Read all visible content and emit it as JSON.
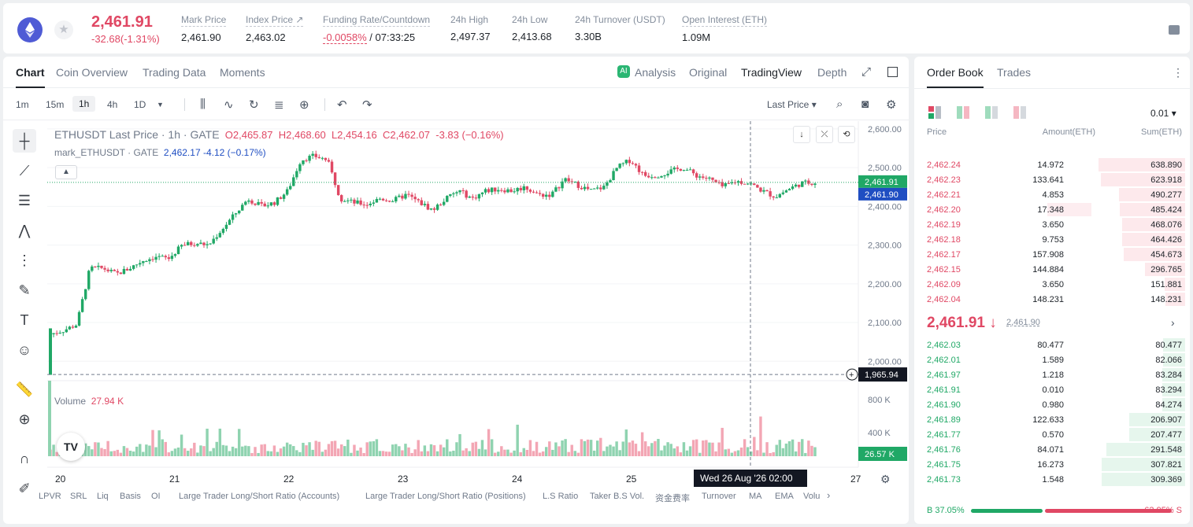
{
  "header": {
    "price": "2,461.91",
    "change": "-32.68(-1.31%)",
    "stats": [
      {
        "label": "Mark Price",
        "value": "2,461.90"
      },
      {
        "label": "Index Price ↗",
        "value": "2,463.02"
      },
      {
        "label": "Funding Rate/Countdown",
        "value_neg": "-0.0058%",
        "value": " / 07:33:25"
      },
      {
        "label": "24h High",
        "value": "2,497.37"
      },
      {
        "label": "24h Low",
        "value": "2,413.68"
      },
      {
        "label": "24h Turnover (USDT)",
        "value": "3.30B"
      },
      {
        "label": "Open Interest (ETH)",
        "value": "1.09M"
      }
    ],
    "colors": {
      "up": "#20a866",
      "down": "#e04864",
      "eth": "#4f5bd5"
    }
  },
  "chart_tabs": [
    "Chart",
    "Coin Overview",
    "Trading Data",
    "Moments"
  ],
  "views": [
    "Analysis",
    "Original",
    "TradingView",
    "Depth"
  ],
  "timeframes": [
    "1m",
    "15m",
    "1h",
    "4h",
    "1D"
  ],
  "last_price_select": "Last Price ▾",
  "ohlc": {
    "title": "ETHUSDT Last Price · 1h · GATE",
    "o": "O2,465.87",
    "h": "H2,468.60",
    "l": "L2,454.16",
    "c": "C2,462.07",
    "chg": "-3.83 (−0.16%)"
  },
  "mark": {
    "name": "mark_ETHUSDT · GATE",
    "value": "2,462.17 -4.12 (−0.17%)"
  },
  "volume": {
    "label": "Volume",
    "value": "27.94 K"
  },
  "axis": {
    "price_ticks": [
      "2,600.00",
      "2,500.00",
      "2,400.00",
      "2,300.00",
      "2,200.00",
      "2,100.00",
      "2,000.00"
    ],
    "vol_ticks": [
      "800 K",
      "400 K"
    ],
    "date_ticks": [
      "20",
      "21",
      "22",
      "23",
      "24",
      "25",
      "27"
    ],
    "last_label": "2,461.91",
    "mark_label": "2,461.90",
    "cursor_label": "1,965.94",
    "vol_label": "26.57 K",
    "cursor_date": "Wed 26 Aug '26   02:00"
  },
  "indicators": [
    "LPVR",
    "SRL",
    "Liq",
    "Basis",
    "OI",
    "Large Trader Long/Short Ratio (Accounts)",
    "Large Trader Long/Short Ratio (Positions)",
    "L.S Ratio",
    "Taker B.S Vol.",
    "资金费率",
    "Turnover",
    "MA",
    "EMA",
    "Volu"
  ],
  "chart_data": {
    "type": "candlestick",
    "x_axis": "date (Aug '26, 1h candles)",
    "y_axis": "price (USDT)",
    "ylim": [
      1960,
      2620
    ],
    "close_path": [
      2070,
      2080,
      2095,
      2240,
      2240,
      2225,
      2240,
      2260,
      2270,
      2265,
      2300,
      2305,
      2300,
      2340,
      2380,
      2420,
      2400,
      2410,
      2440,
      2520,
      2530,
      2520,
      2420,
      2410,
      2405,
      2420,
      2415,
      2430,
      2410,
      2390,
      2420,
      2440,
      2420,
      2440,
      2445,
      2440,
      2450,
      2430,
      2430,
      2470,
      2455,
      2440,
      2450,
      2500,
      2520,
      2480,
      2480,
      2490,
      2500,
      2480,
      2470,
      2450,
      2465,
      2460,
      2440,
      2425,
      2445,
      2460,
      2462
    ]
  },
  "orderbook": {
    "tabs": [
      "Order Book",
      "Trades"
    ],
    "step": "0.01 ▾",
    "headers": [
      "Price",
      "Amount(ETH)",
      "Sum(ETH)"
    ],
    "asks": [
      {
        "p": "2,462.24",
        "a": "14.972",
        "s": "638.890",
        "sum": 638.89,
        "amt": 14.972
      },
      {
        "p": "2,462.23",
        "a": "133.641",
        "s": "623.918",
        "sum": 623.918,
        "amt": 133.641
      },
      {
        "p": "2,462.21",
        "a": "4.853",
        "s": "490.277",
        "sum": 490.277,
        "amt": 4.853
      },
      {
        "p": "2,462.20",
        "a": "17.348",
        "s": "485.424",
        "sum": 485.424,
        "amt": 17.348
      },
      {
        "p": "2,462.19",
        "a": "3.650",
        "s": "468.076",
        "sum": 468.076,
        "amt": 3.65
      },
      {
        "p": "2,462.18",
        "a": "9.753",
        "s": "464.426",
        "sum": 464.426,
        "amt": 9.753
      },
      {
        "p": "2,462.17",
        "a": "157.908",
        "s": "454.673",
        "sum": 454.673,
        "amt": 157.908
      },
      {
        "p": "2,462.15",
        "a": "144.884",
        "s": "296.765",
        "sum": 296.765,
        "amt": 144.884
      },
      {
        "p": "2,462.09",
        "a": "3.650",
        "s": "151.881",
        "sum": 151.881,
        "amt": 3.65
      },
      {
        "p": "2,462.04",
        "a": "148.231",
        "s": "148.231",
        "sum": 148.231,
        "amt": 148.231
      }
    ],
    "mid": "2,461.91 ↓",
    "mid_mark": "2,461.90",
    "bids": [
      {
        "p": "2,462.03",
        "a": "80.477",
        "s": "80.477",
        "sum": 80.477
      },
      {
        "p": "2,462.01",
        "a": "1.589",
        "s": "82.066",
        "sum": 82.066
      },
      {
        "p": "2,461.97",
        "a": "1.218",
        "s": "83.284",
        "sum": 83.284
      },
      {
        "p": "2,461.91",
        "a": "0.010",
        "s": "83.294",
        "sum": 83.294
      },
      {
        "p": "2,461.90",
        "a": "0.980",
        "s": "84.274",
        "sum": 84.274
      },
      {
        "p": "2,461.89",
        "a": "122.633",
        "s": "206.907",
        "sum": 206.907
      },
      {
        "p": "2,461.77",
        "a": "0.570",
        "s": "207.477",
        "sum": 207.477
      },
      {
        "p": "2,461.76",
        "a": "84.071",
        "s": "291.548",
        "sum": 291.548
      },
      {
        "p": "2,461.75",
        "a": "16.273",
        "s": "307.821",
        "sum": 307.821
      },
      {
        "p": "2,461.73",
        "a": "1.548",
        "s": "309.369",
        "sum": 309.369
      }
    ],
    "buy_ratio": "B 37.05%",
    "sell_ratio": "62.95% S",
    "buy_frac": 0.3705
  }
}
